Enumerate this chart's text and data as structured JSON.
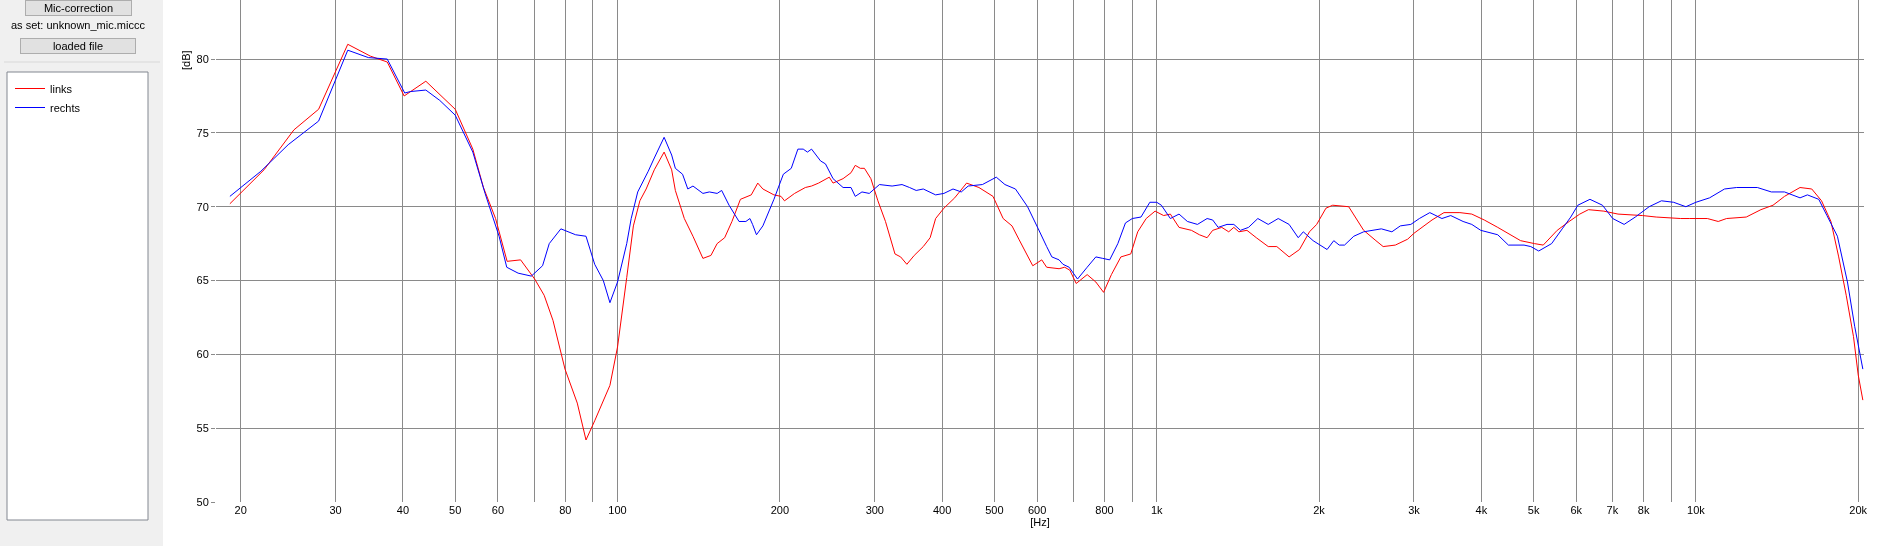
{
  "chart_data": {
    "type": "line",
    "xlabel": "[Hz]",
    "ylabel": "[dB]",
    "annotations": [
      "Mic-correction",
      "as set: unknown_mic.miccc",
      "loaded file"
    ],
    "log": "x",
    "grid": true,
    "legend": "left",
    "line_style": "solid",
    "xlim": [
      18,
      20500
    ],
    "ylim": [
      50,
      84
    ],
    "xticks": [
      20,
      30,
      40,
      50,
      60,
      {
        "value": 70,
        "label": null
      },
      80,
      {
        "value": 90,
        "label": null
      },
      100,
      200,
      300,
      400,
      500,
      600,
      {
        "value": 700,
        "label": null
      },
      800,
      {
        "value": 900,
        "label": null
      },
      {
        "value": 1000,
        "label": "1k"
      },
      {
        "value": 2000,
        "label": "2k"
      },
      {
        "value": 3000,
        "label": "3k"
      },
      {
        "value": 4000,
        "label": "4k"
      },
      {
        "value": 5000,
        "label": "5k"
      },
      {
        "value": 6000,
        "label": "6k"
      },
      {
        "value": 7000,
        "label": "7k"
      },
      {
        "value": 8000,
        "label": "8k"
      },
      {
        "value": 9000,
        "label": null
      },
      {
        "value": 10000,
        "label": "10k"
      },
      {
        "value": 20000,
        "label": "20k"
      }
    ],
    "yticks": [
      50,
      55,
      60,
      65,
      70,
      75,
      80
    ],
    "series": [
      {
        "name": "links",
        "color": "#ff0000",
        "x": [
          19.1,
          22.1,
          25.1,
          27.9,
          31.6,
          34.8,
          37.4,
          40.2,
          44.1,
          50.0,
          53.9,
          56.4,
          59.4,
          62.4,
          66.1,
          70.2,
          73.1,
          75.9,
          79.9,
          84.2,
          87.4,
          90.7,
          96.8,
          100,
          104,
          107,
          110,
          113,
          117,
          122,
          126,
          128,
          133,
          138,
          144,
          149,
          153,
          158,
          163,
          169,
          177,
          182,
          186,
          195,
          201,
          204,
          213,
          223,
          229,
          236,
          247,
          251,
          262,
          271,
          276,
          282,
          287,
          295,
          304,
          314,
          327,
          335,
          344,
          355,
          369,
          380,
          389,
          403,
          422,
          444,
          468,
          497,
          519,
          539,
          555,
          589,
          612,
          625,
          659,
          675,
          690,
          709,
          743,
          771,
          797,
          824,
          858,
          895,
          922,
          956,
          993,
          1030,
          1060,
          1100,
          1160,
          1200,
          1240,
          1270,
          1320,
          1360,
          1390,
          1420,
          1470,
          1530,
          1610,
          1670,
          1760,
          1840,
          1920,
          1980,
          2060,
          2120,
          2270,
          2420,
          2550,
          2630,
          2770,
          2920,
          3000,
          3240,
          3410,
          3650,
          3840,
          4050,
          4290,
          4730,
          5020,
          5210,
          5530,
          5820,
          6090,
          6320,
          6750,
          7170,
          7960,
          8440,
          9370,
          9720,
          10500,
          11000,
          11400,
          12400,
          13200,
          13900,
          14600,
          15600,
          16400,
          17100,
          17800,
          18400,
          19000,
          19600,
          20000,
          20400
        ],
        "values": [
          70.2,
          72.5,
          75.2,
          76.6,
          81.0,
          80.2,
          79.8,
          77.5,
          78.5,
          76.6,
          73.9,
          71.3,
          69.2,
          66.3,
          66.4,
          65.1,
          64.0,
          62.3,
          59.0,
          56.7,
          54.2,
          55.5,
          57.9,
          60.5,
          65.2,
          68.7,
          70.4,
          71.2,
          72.5,
          73.7,
          72.5,
          71.1,
          69.2,
          68.0,
          66.5,
          66.7,
          67.5,
          67.9,
          69.0,
          70.5,
          70.8,
          71.6,
          71.2,
          70.8,
          70.7,
          70.4,
          70.9,
          71.3,
          71.4,
          71.6,
          72.0,
          71.6,
          71.9,
          72.3,
          72.8,
          72.6,
          72.6,
          71.9,
          70.4,
          69.0,
          66.8,
          66.6,
          66.1,
          66.7,
          67.3,
          67.9,
          69.2,
          69.9,
          70.6,
          71.6,
          71.3,
          70.7,
          69.2,
          68.7,
          67.8,
          66.0,
          66.4,
          65.9,
          65.8,
          65.9,
          65.7,
          64.8,
          65.4,
          64.9,
          64.2,
          65.4,
          66.6,
          66.8,
          68.3,
          69.2,
          69.7,
          69.4,
          69.5,
          68.6,
          68.4,
          68.1,
          67.9,
          68.4,
          68.6,
          68.3,
          68.6,
          68.3,
          68.4,
          67.9,
          67.3,
          67.3,
          66.6,
          67.1,
          68.3,
          68.8,
          69.9,
          70.1,
          70.0,
          68.4,
          67.7,
          67.3,
          67.4,
          67.8,
          68.2,
          69.1,
          69.6,
          69.6,
          69.5,
          69.1,
          68.6,
          67.7,
          67.5,
          67.4,
          68.4,
          69.0,
          69.5,
          69.8,
          69.7,
          69.5,
          69.4,
          69.3,
          69.2,
          69.2,
          69.2,
          69.0,
          69.2,
          69.3,
          69.8,
          70.1,
          70.7,
          71.3,
          71.2,
          70.4,
          69.0,
          66.6,
          64.0,
          61.2,
          58.6,
          56.9
        ]
      },
      {
        "name": "rechts",
        "color": "#0000ff",
        "x": [
          19.1,
          21.8,
          24.5,
          27.9,
          31.6,
          34.5,
          37.4,
          40.3,
          41.3,
          44.1,
          46.8,
          50.0,
          53.9,
          56.8,
          60.3,
          62.3,
          65.4,
          69.2,
          72.6,
          74.7,
          78.5,
          83.6,
          87.4,
          90.7,
          94.1,
          96.8,
          100,
          104,
          106,
          109,
          114,
          117,
          122,
          126,
          128,
          132,
          135,
          138,
          144,
          148,
          153,
          156,
          161,
          168,
          173,
          176,
          178,
          181,
          186,
          195,
          203,
          210,
          216,
          221,
          225,
          229,
          238,
          243,
          251,
          262,
          271,
          276,
          284,
          293,
          306,
          323,
          337,
          348,
          358,
          369,
          389,
          403,
          419,
          434,
          447,
          475,
          504,
          523,
          547,
          576,
          603,
          625,
          639,
          659,
          670,
          688,
          713,
          743,
          771,
          794,
          818,
          847,
          875,
          901,
          935,
          971,
          1000,
          1020,
          1060,
          1100,
          1140,
          1190,
          1240,
          1270,
          1300,
          1350,
          1390,
          1430,
          1480,
          1540,
          1610,
          1680,
          1760,
          1830,
          1870,
          1950,
          2070,
          2130,
          2180,
          2230,
          2320,
          2420,
          2610,
          2730,
          2830,
          2960,
          3070,
          3210,
          3380,
          3510,
          3700,
          3840,
          3990,
          4290,
          4490,
          4800,
          4940,
          5110,
          5400,
          5650,
          5860,
          6040,
          6360,
          6710,
          7010,
          7360,
          7720,
          8190,
          8630,
          9090,
          9580,
          10000,
          10600,
          11300,
          11900,
          13000,
          13800,
          14600,
          15600,
          16100,
          16900,
          17500,
          18300,
          19100,
          19700,
          20400
        ],
        "values": [
          70.7,
          72.4,
          74.2,
          75.8,
          80.6,
          80.1,
          80.0,
          77.7,
          77.8,
          77.9,
          77.2,
          76.2,
          73.7,
          70.9,
          68.0,
          65.9,
          65.5,
          65.3,
          66.0,
          67.5,
          68.5,
          68.1,
          68.0,
          66.1,
          65.0,
          63.5,
          64.9,
          67.5,
          69.2,
          71.0,
          72.4,
          73.3,
          74.7,
          73.5,
          72.6,
          72.2,
          71.2,
          71.4,
          70.9,
          71.0,
          70.9,
          71.1,
          70.1,
          69.0,
          69.0,
          69.2,
          68.8,
          68.1,
          68.7,
          70.5,
          72.2,
          72.6,
          73.9,
          73.9,
          73.7,
          73.9,
          73.1,
          72.9,
          71.9,
          71.3,
          71.3,
          70.7,
          71.0,
          70.9,
          71.5,
          71.4,
          71.5,
          71.3,
          71.1,
          71.2,
          70.8,
          70.9,
          71.2,
          71.0,
          71.4,
          71.5,
          72.0,
          71.5,
          71.2,
          70.0,
          68.5,
          67.3,
          66.6,
          66.4,
          66.1,
          65.9,
          65.1,
          65.9,
          66.6,
          66.5,
          66.4,
          67.5,
          68.9,
          69.2,
          69.3,
          70.3,
          70.3,
          70.1,
          69.2,
          69.5,
          69.0,
          68.8,
          69.2,
          69.1,
          68.6,
          68.8,
          68.8,
          68.4,
          68.6,
          69.2,
          68.8,
          69.2,
          68.8,
          67.9,
          68.3,
          67.7,
          67.1,
          67.7,
          67.4,
          67.4,
          68.0,
          68.3,
          68.5,
          68.3,
          68.7,
          68.8,
          69.2,
          69.6,
          69.2,
          69.4,
          69.0,
          68.8,
          68.4,
          68.1,
          67.4,
          67.4,
          67.3,
          67.0,
          67.5,
          68.5,
          69.3,
          70.1,
          70.5,
          70.1,
          69.2,
          68.8,
          69.3,
          70.0,
          70.4,
          70.3,
          70.0,
          70.3,
          70.6,
          71.2,
          71.3,
          71.3,
          71.0,
          71.0,
          70.6,
          70.8,
          70.5,
          69.4,
          68.0,
          64.9,
          61.9,
          59.0
        ]
      }
    ]
  }
}
